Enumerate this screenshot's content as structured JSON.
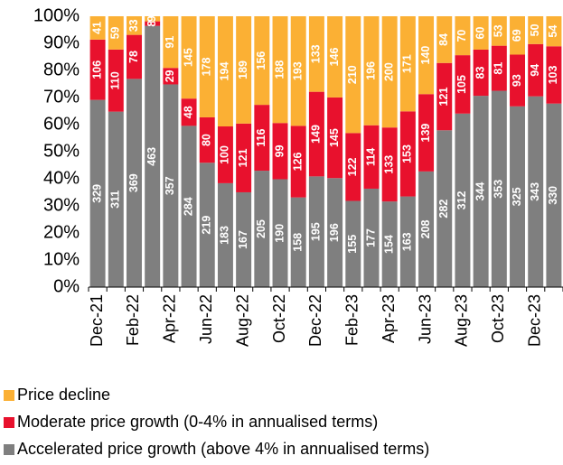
{
  "chart_data": {
    "type": "bar",
    "stacking": "percent",
    "categories": [
      "Dec-21",
      null,
      "Feb-22",
      null,
      "Apr-22",
      null,
      "Jun-22",
      null,
      "Aug-22",
      null,
      "Oct-22",
      null,
      "Dec-22",
      null,
      "Feb-23",
      null,
      "Apr-23",
      null,
      "Jun-23",
      null,
      "Aug-23",
      null,
      "Oct-23",
      null,
      "Dec-23",
      null
    ],
    "series": [
      {
        "name": "Accelerated price growth (above 4% in annualised terms)",
        "color": "#7f7f7f",
        "values": [
          329,
          311,
          369,
          463,
          357,
          284,
          219,
          183,
          167,
          205,
          190,
          158,
          195,
          196,
          155,
          177,
          154,
          163,
          208,
          282,
          312,
          344,
          353,
          325,
          343,
          330
        ]
      },
      {
        "name": "Moderate price growth (0-4% in annualised terms)",
        "color": "#e8112d",
        "values": [
          106,
          110,
          78,
          8,
          29,
          48,
          80,
          100,
          121,
          116,
          99,
          126,
          149,
          145,
          122,
          114,
          133,
          153,
          139,
          121,
          105,
          83,
          81,
          93,
          94,
          103
        ]
      },
      {
        "name": "Price decline",
        "color": "#fbb034",
        "values": [
          41,
          59,
          33,
          9,
          91,
          145,
          178,
          194,
          189,
          156,
          188,
          193,
          133,
          146,
          210,
          196,
          200,
          171,
          140,
          84,
          70,
          60,
          53,
          69,
          50,
          54
        ]
      }
    ],
    "ylim": [
      0,
      100
    ],
    "yticks": [
      {
        "value": 0,
        "label": "0%"
      },
      {
        "value": 10,
        "label": "10%"
      },
      {
        "value": 20,
        "label": "20%"
      },
      {
        "value": 30,
        "label": "30%"
      },
      {
        "value": 40,
        "label": "40%"
      },
      {
        "value": 50,
        "label": "50%"
      },
      {
        "value": 60,
        "label": "60%"
      },
      {
        "value": 70,
        "label": "70%"
      },
      {
        "value": 80,
        "label": "80%"
      },
      {
        "value": 90,
        "label": "90%"
      },
      {
        "value": 100,
        "label": "100%"
      }
    ]
  }
}
